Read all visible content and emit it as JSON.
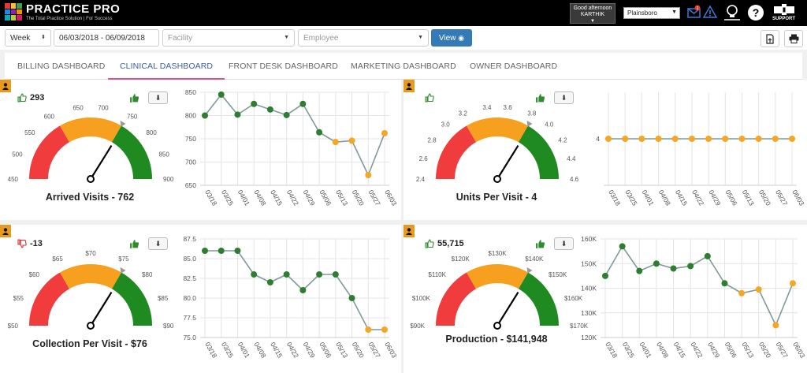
{
  "app": {
    "name": "PRACTICE PRO",
    "tagline": "The Total Practice Solution | For Success",
    "greeting_line1": "Good afternoon",
    "greeting_user": "KARTHIK",
    "location": "Plainsboro",
    "support_label": "SUPPORT",
    "alert_count": "1"
  },
  "filters": {
    "period": "Week",
    "date_range": "06/03/2018 - 06/09/2018",
    "facility_placeholder": "Facility",
    "employee_placeholder": "Employee",
    "view_label": "View"
  },
  "tabs": [
    {
      "label": "Billing Dashboard",
      "active": false
    },
    {
      "label": "Clinical Dashboard",
      "active": true
    },
    {
      "label": "Front Desk Dashboard",
      "active": false
    },
    {
      "label": "Marketing Dashboard",
      "active": false
    },
    {
      "label": "Owner Dashboard",
      "active": false
    }
  ],
  "colors": {
    "gauge_red": "#f03c3c",
    "gauge_orange": "#f7a020",
    "gauge_green": "#1f8a1f",
    "point_green": "#2e7d32",
    "point_orange": "#f5a623",
    "line": "#7f9a9a",
    "accent_blue": "#337ab7",
    "badge_orange": "#e89a1c"
  },
  "panels": [
    {
      "title": "Arrived Visits - 762",
      "kpi": "293",
      "trend": "up",
      "gauge_ticks": [
        "450",
        "500",
        "550",
        "600",
        "650",
        "700",
        "750",
        "800",
        "850",
        "900"
      ],
      "chart_data": {
        "type": "line",
        "x": [
          "03/18",
          "03/25",
          "04/01",
          "04/08",
          "04/15",
          "04/22",
          "04/29",
          "05/06",
          "05/13",
          "05/20",
          "05/27",
          "06/03"
        ],
        "values": [
          800,
          845,
          802,
          825,
          813,
          801,
          825,
          764,
          743,
          746,
          672,
          762
        ],
        "highlight": [
          false,
          false,
          false,
          false,
          false,
          false,
          false,
          false,
          true,
          true,
          true,
          true
        ],
        "yticks": [
          "850",
          "800",
          "750",
          "700",
          "650"
        ],
        "ylim": [
          650,
          850
        ]
      }
    },
    {
      "title": "Units Per Visit - 4",
      "kpi": "",
      "trend": "up",
      "gauge_ticks": [
        "2.4",
        "2.6",
        "2.8",
        "3.0",
        "3.2",
        "3.4",
        "3.6",
        "3.8",
        "4.0",
        "4.2",
        "4.4",
        "4.6"
      ],
      "chart_data": {
        "type": "line",
        "x": [
          "03/18",
          "03/25",
          "04/01",
          "04/08",
          "04/15",
          "04/22",
          "04/29",
          "05/06",
          "05/13",
          "05/20",
          "05/27",
          "06/03"
        ],
        "values": [
          4,
          4,
          4,
          4,
          4,
          4,
          4,
          4,
          4,
          4,
          4,
          4
        ],
        "highlight": [
          true,
          true,
          true,
          true,
          true,
          true,
          true,
          true,
          true,
          true,
          true,
          true
        ],
        "yticks": [
          "4"
        ],
        "ylim": [
          3,
          5
        ]
      }
    },
    {
      "title": "Collection Per Visit - $76",
      "kpi": "-13",
      "trend": "down",
      "gauge_ticks": [
        "$50",
        "$55",
        "$60",
        "$65",
        "$70",
        "$75",
        "$80",
        "$85",
        "$90"
      ],
      "chart_data": {
        "type": "line",
        "x": [
          "03/18",
          "03/25",
          "04/01",
          "04/08",
          "04/15",
          "04/22",
          "04/29",
          "05/06",
          "05/13",
          "05/20",
          "05/27",
          "06/03"
        ],
        "values": [
          86,
          86,
          86,
          83,
          82,
          83,
          81,
          83,
          83,
          80,
          76,
          76
        ],
        "highlight": [
          false,
          false,
          false,
          false,
          false,
          false,
          false,
          false,
          false,
          false,
          true,
          true
        ],
        "yticks": [
          "87.5",
          "85.0",
          "82.5",
          "80.0",
          "77.5",
          "75.0"
        ],
        "ylim": [
          75,
          87.5
        ]
      }
    },
    {
      "title": "Production - $141,948",
      "kpi": "55,715",
      "trend": "up",
      "gauge_ticks": [
        "$90K",
        "$100K",
        "$110K",
        "$120K",
        "$130K",
        "$140K",
        "$150K",
        "$160K",
        "$170K"
      ],
      "chart_data": {
        "type": "line",
        "x": [
          "03/18",
          "03/25",
          "04/01",
          "04/08",
          "04/15",
          "04/22",
          "04/29",
          "05/06",
          "05/13",
          "05/20",
          "05/27",
          "06/03"
        ],
        "values": [
          145000,
          157000,
          147000,
          150000,
          148000,
          149000,
          153000,
          142000,
          138000,
          139500,
          125000,
          142000
        ],
        "highlight": [
          false,
          false,
          false,
          false,
          false,
          false,
          false,
          false,
          true,
          true,
          true,
          true
        ],
        "yticks": [
          "160K",
          "150K",
          "140K",
          "130K",
          "120K"
        ],
        "ylim": [
          120000,
          160000
        ]
      }
    }
  ]
}
